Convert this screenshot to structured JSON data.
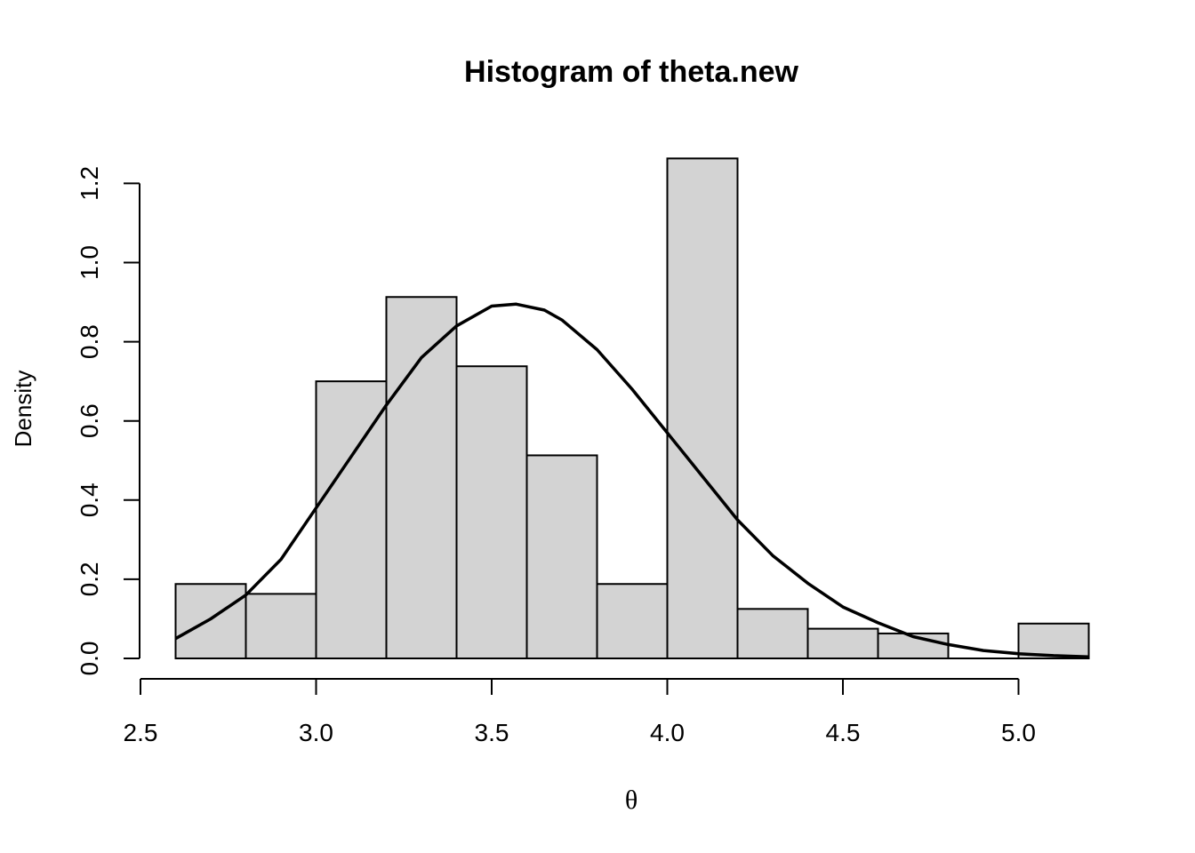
{
  "chart_data": {
    "type": "bar",
    "title": "Histogram of theta.new",
    "xlabel": "θ",
    "ylabel": "Density",
    "xlim": [
      2.5,
      5.25
    ],
    "ylim": [
      0,
      1.3
    ],
    "x_ticks": [
      "2.5",
      "3.0",
      "3.5",
      "4.0",
      "4.5",
      "5.0"
    ],
    "y_ticks": [
      "0.0",
      "0.2",
      "0.4",
      "0.6",
      "0.8",
      "1.0",
      "1.2"
    ],
    "bins": [
      {
        "from": 2.6,
        "to": 2.8,
        "density": 0.188
      },
      {
        "from": 2.8,
        "to": 3.0,
        "density": 0.163
      },
      {
        "from": 3.0,
        "to": 3.2,
        "density": 0.7
      },
      {
        "from": 3.2,
        "to": 3.4,
        "density": 0.913
      },
      {
        "from": 3.4,
        "to": 3.6,
        "density": 0.738
      },
      {
        "from": 3.6,
        "to": 3.8,
        "density": 0.513
      },
      {
        "from": 3.8,
        "to": 4.0,
        "density": 0.188
      },
      {
        "from": 4.0,
        "to": 4.2,
        "density": 1.263
      },
      {
        "from": 4.2,
        "to": 4.4,
        "density": 0.125
      },
      {
        "from": 4.4,
        "to": 4.6,
        "density": 0.075
      },
      {
        "from": 4.6,
        "to": 4.8,
        "density": 0.063
      },
      {
        "from": 4.8,
        "to": 5.0,
        "density": 0.0
      },
      {
        "from": 5.0,
        "to": 5.2,
        "density": 0.088
      }
    ],
    "density_curve": {
      "x": [
        2.6,
        2.7,
        2.8,
        2.9,
        3.0,
        3.1,
        3.2,
        3.3,
        3.4,
        3.5,
        3.57,
        3.65,
        3.7,
        3.8,
        3.9,
        4.0,
        4.1,
        4.2,
        4.3,
        4.4,
        4.5,
        4.6,
        4.7,
        4.8,
        4.9,
        5.0,
        5.1,
        5.2
      ],
      "y": [
        0.05,
        0.1,
        0.16,
        0.25,
        0.38,
        0.51,
        0.64,
        0.76,
        0.84,
        0.89,
        0.895,
        0.88,
        0.855,
        0.78,
        0.68,
        0.57,
        0.46,
        0.35,
        0.26,
        0.19,
        0.13,
        0.09,
        0.055,
        0.035,
        0.02,
        0.012,
        0.007,
        0.004
      ]
    },
    "grid": false
  }
}
